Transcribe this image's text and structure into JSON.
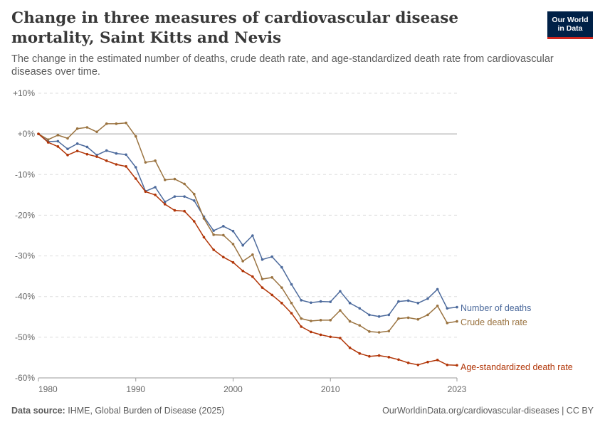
{
  "header": {
    "title": "Change in three measures of cardiovascular disease mortality, Saint Kitts and Nevis",
    "subtitle": "The change in the estimated number of deaths, crude death rate, and age-standardized death rate from cardiovascular diseases over time.",
    "logo_line1": "Our World",
    "logo_line2": "in Data"
  },
  "footer": {
    "source_label": "Data source:",
    "source_text": "IHME, Global Burden of Disease (2025)",
    "url_text": "OurWorldinData.org/cardiovascular-diseases | CC BY"
  },
  "colors": {
    "number_of_deaths": "#4c6a9c",
    "crude_death_rate": "#9a7340",
    "age_standardized": "#b13507",
    "grid": "#dddddd",
    "zero_line": "#a1a1a1"
  },
  "chart_data": {
    "type": "line",
    "x": [
      1980,
      1981,
      1982,
      1983,
      1984,
      1985,
      1986,
      1987,
      1988,
      1989,
      1990,
      1991,
      1992,
      1993,
      1994,
      1995,
      1996,
      1997,
      1998,
      1999,
      2000,
      2001,
      2002,
      2003,
      2004,
      2005,
      2006,
      2007,
      2008,
      2009,
      2010,
      2011,
      2012,
      2013,
      2014,
      2015,
      2016,
      2017,
      2018,
      2019,
      2020,
      2021,
      2022,
      2023
    ],
    "xlim": [
      1980,
      2023
    ],
    "x_ticks": [
      1980,
      1990,
      2000,
      2010,
      2023
    ],
    "y_ticks": [
      10,
      0,
      -10,
      -20,
      -30,
      -40,
      -50,
      -60
    ],
    "y_tick_labels": [
      "+10%",
      "+0%",
      "-10%",
      "-20%",
      "-30%",
      "-40%",
      "-50%",
      "-60%"
    ],
    "ylim": [
      -60,
      10
    ],
    "grid": "horizontal dashed",
    "legend": "right, at line ends",
    "series": [
      {
        "name": "Number of deaths",
        "color": "#4c6a9c",
        "values": [
          0,
          -1.9,
          -1.8,
          -3.7,
          -2.4,
          -3.2,
          -5.2,
          -4.1,
          -4.8,
          -5.1,
          -8.2,
          -14.1,
          -13.1,
          -16.7,
          -15.4,
          -15.4,
          -16.4,
          -20.4,
          -23.8,
          -22.7,
          -23.9,
          -27.4,
          -25.0,
          -30.9,
          -30.2,
          -32.8,
          -37.0,
          -40.9,
          -41.5,
          -41.2,
          -41.3,
          -38.7,
          -41.6,
          -42.9,
          -44.5,
          -44.9,
          -44.5,
          -41.2,
          -41.0,
          -41.6,
          -40.5,
          -38.2,
          -42.9,
          -42.6
        ]
      },
      {
        "name": "Crude death rate",
        "color": "#9a7340",
        "values": [
          0,
          -1.4,
          -0.3,
          -1.1,
          1.3,
          1.6,
          0.5,
          2.5,
          2.5,
          2.7,
          -0.6,
          -7.0,
          -6.6,
          -11.3,
          -11.1,
          -12.3,
          -14.8,
          -20.8,
          -24.8,
          -24.9,
          -27.1,
          -31.3,
          -29.7,
          -35.7,
          -35.3,
          -37.8,
          -41.6,
          -45.4,
          -46.0,
          -45.8,
          -45.8,
          -43.4,
          -46.1,
          -47.1,
          -48.6,
          -48.8,
          -48.5,
          -45.4,
          -45.2,
          -45.6,
          -44.5,
          -42.3,
          -46.5,
          -46.1
        ]
      },
      {
        "name": "Age-standardized death rate",
        "color": "#b13507",
        "values": [
          0,
          -2.1,
          -3.1,
          -5.2,
          -4.2,
          -5.0,
          -5.6,
          -6.6,
          -7.5,
          -8.0,
          -11.0,
          -14.2,
          -15.0,
          -17.3,
          -18.8,
          -19.0,
          -21.5,
          -25.4,
          -28.5,
          -30.3,
          -31.6,
          -33.7,
          -35.1,
          -37.8,
          -39.6,
          -41.6,
          -44.1,
          -47.4,
          -48.7,
          -49.4,
          -49.9,
          -50.2,
          -52.6,
          -54.0,
          -54.7,
          -54.5,
          -54.9,
          -55.5,
          -56.3,
          -56.8,
          -56.1,
          -55.6,
          -56.8,
          -56.9
        ]
      }
    ]
  }
}
